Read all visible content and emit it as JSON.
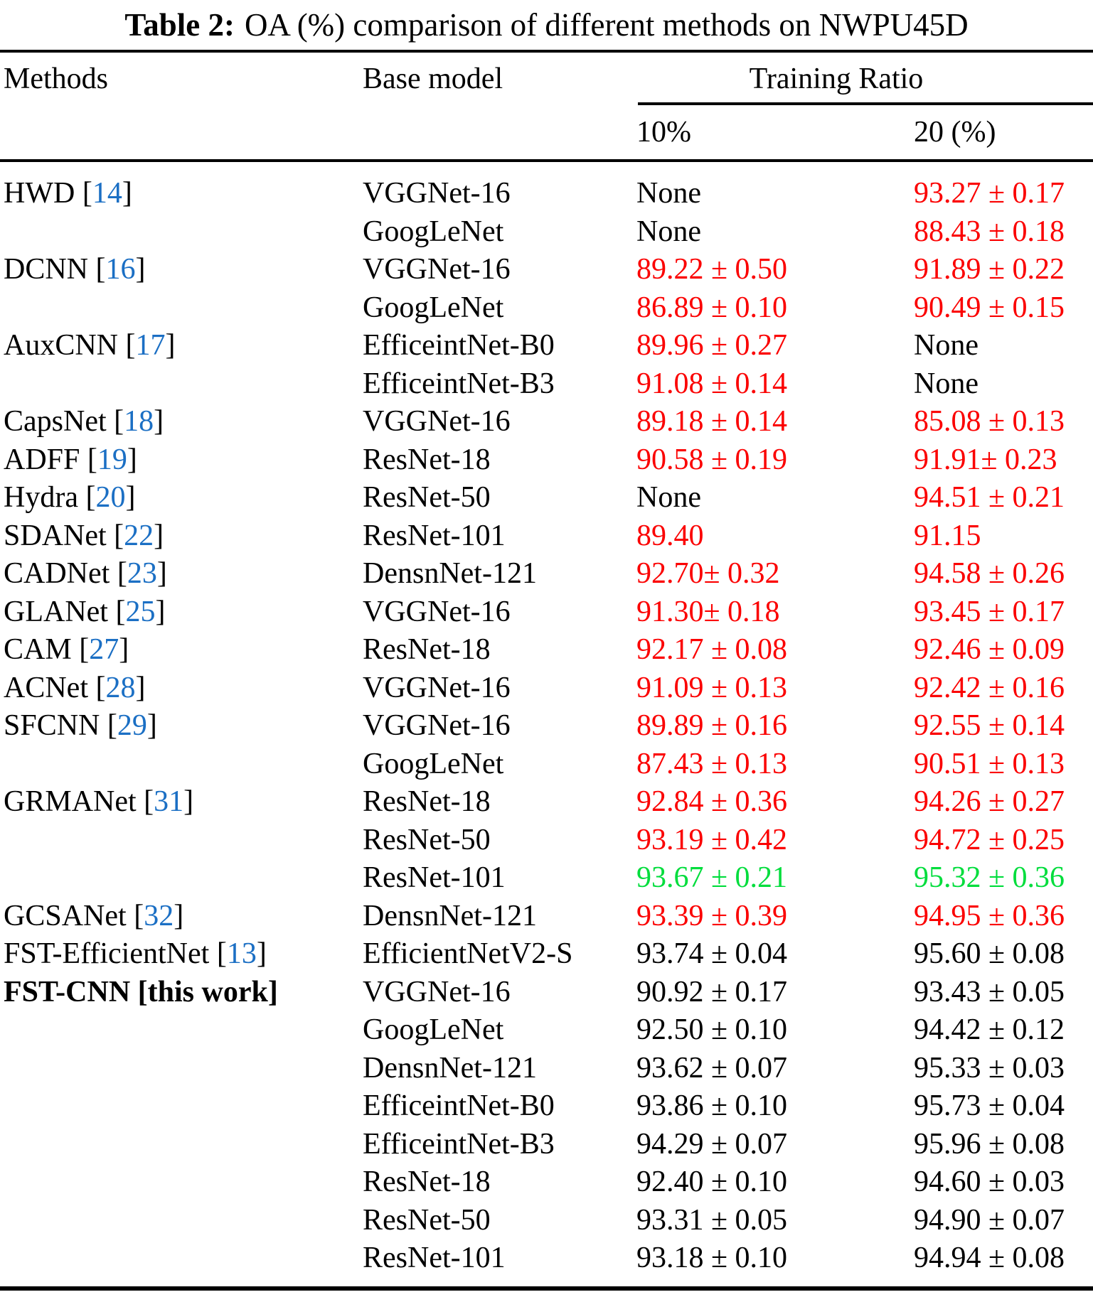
{
  "title": {
    "label": "Table 2:",
    "text": "OA (%) comparison of different methods on NWPU45D"
  },
  "columns": {
    "methods": "Methods",
    "base_model": "Base model",
    "training_ratio": "Training Ratio",
    "ratio_10": "10%",
    "ratio_20": "20 (%)"
  },
  "colors": {
    "red": "#fb0000",
    "green": "#00dd3c",
    "black": "#000000",
    "citation": "#1b6fc4"
  },
  "rows": [
    {
      "method": "HWD",
      "cite": "14",
      "bold": false,
      "base": "VGGNet-16",
      "v10": "None",
      "c10": "black",
      "v20": "93.27 ± 0.17",
      "c20": "red"
    },
    {
      "method": "",
      "cite": "",
      "bold": false,
      "base": "GoogLeNet",
      "v10": "None",
      "c10": "black",
      "v20": "88.43 ± 0.18",
      "c20": "red"
    },
    {
      "method": "DCNN",
      "cite": "16",
      "bold": false,
      "base": "VGGNet-16",
      "v10": "89.22 ± 0.50",
      "c10": "red",
      "v20": "91.89 ± 0.22",
      "c20": "red"
    },
    {
      "method": "",
      "cite": "",
      "bold": false,
      "base": "GoogLeNet",
      "v10": "86.89 ± 0.10",
      "c10": "red",
      "v20": "90.49 ± 0.15",
      "c20": "red"
    },
    {
      "method": "AuxCNN",
      "cite": "17",
      "bold": false,
      "base": "EfficeintNet-B0",
      "v10": "89.96 ± 0.27",
      "c10": "red",
      "v20": "None",
      "c20": "black"
    },
    {
      "method": "",
      "cite": "",
      "bold": false,
      "base": "EfficeintNet-B3",
      "v10": "91.08 ± 0.14",
      "c10": "red",
      "v20": "None",
      "c20": "black"
    },
    {
      "method": "CapsNet",
      "cite": "18",
      "bold": false,
      "base": "VGGNet-16",
      "v10": "89.18 ± 0.14",
      "c10": "red",
      "v20": "85.08 ± 0.13",
      "c20": "red"
    },
    {
      "method": "ADFF",
      "cite": "19",
      "bold": false,
      "base": "ResNet-18",
      "v10": "90.58 ± 0.19",
      "c10": "red",
      "v20": "91.91± 0.23",
      "c20": "red"
    },
    {
      "method": "Hydra",
      "cite": "20",
      "bold": false,
      "base": "ResNet-50",
      "v10": "None",
      "c10": "black",
      "v20": "94.51 ± 0.21",
      "c20": "red"
    },
    {
      "method": "SDANet",
      "cite": "22",
      "bold": false,
      "base": "ResNet-101",
      "v10": "89.40",
      "c10": "red",
      "v20": "91.15",
      "c20": "red"
    },
    {
      "method": "CADNet",
      "cite": "23",
      "bold": false,
      "base": "DensnNet-121",
      "v10": "92.70± 0.32",
      "c10": "red",
      "v20": "94.58 ± 0.26",
      "c20": "red"
    },
    {
      "method": "GLANet",
      "cite": "25",
      "bold": false,
      "base": "VGGNet-16",
      "v10": "91.30± 0.18",
      "c10": "red",
      "v20": "93.45 ± 0.17",
      "c20": "red"
    },
    {
      "method": "CAM",
      "cite": "27",
      "bold": false,
      "base": "ResNet-18",
      "v10": "92.17 ± 0.08",
      "c10": "red",
      "v20": "92.46 ± 0.09",
      "c20": "red"
    },
    {
      "method": "ACNet",
      "cite": "28",
      "bold": false,
      "base": "VGGNet-16",
      "v10": "91.09 ± 0.13",
      "c10": "red",
      "v20": "92.42 ± 0.16",
      "c20": "red"
    },
    {
      "method": "SFCNN",
      "cite": "29",
      "bold": false,
      "base": "VGGNet-16",
      "v10": "89.89 ± 0.16",
      "c10": "red",
      "v20": "92.55 ± 0.14",
      "c20": "red"
    },
    {
      "method": "",
      "cite": "",
      "bold": false,
      "base": "GoogLeNet",
      "v10": "87.43 ± 0.13",
      "c10": "red",
      "v20": "90.51 ± 0.13",
      "c20": "red"
    },
    {
      "method": "GRMANet",
      "cite": "31",
      "bold": false,
      "base": "ResNet-18",
      "v10": "92.84 ± 0.36",
      "c10": "red",
      "v20": "94.26 ± 0.27",
      "c20": "red"
    },
    {
      "method": "",
      "cite": "",
      "bold": false,
      "base": "ResNet-50",
      "v10": "93.19 ± 0.42",
      "c10": "red",
      "v20": "94.72 ± 0.25",
      "c20": "red"
    },
    {
      "method": "",
      "cite": "",
      "bold": false,
      "base": "ResNet-101",
      "v10": "93.67 ± 0.21",
      "c10": "green",
      "v20": "95.32 ± 0.36",
      "c20": "green"
    },
    {
      "method": "GCSANet",
      "cite": "32",
      "bold": false,
      "base": "DensnNet-121",
      "v10": "93.39 ± 0.39",
      "c10": "red",
      "v20": "94.95 ± 0.36",
      "c20": "red"
    },
    {
      "method": "FST-EfficientNet",
      "cite": "13",
      "bold": false,
      "base": "EfficientNetV2-S",
      "v10": "93.74 ± 0.04",
      "c10": "black",
      "v20": "95.60 ± 0.08",
      "c20": "black"
    },
    {
      "method": "FST-CNN [this work]",
      "cite": "",
      "bold": true,
      "base": "VGGNet-16",
      "v10": "90.92 ± 0.17",
      "c10": "black",
      "v20": "93.43 ± 0.05",
      "c20": "black"
    },
    {
      "method": "",
      "cite": "",
      "bold": false,
      "base": "GoogLeNet",
      "v10": "92.50 ± 0.10",
      "c10": "black",
      "v20": "94.42 ± 0.12",
      "c20": "black"
    },
    {
      "method": "",
      "cite": "",
      "bold": false,
      "base": "DensnNet-121",
      "v10": "93.62 ± 0.07",
      "c10": "black",
      "v20": "95.33 ± 0.03",
      "c20": "black"
    },
    {
      "method": "",
      "cite": "",
      "bold": false,
      "base": "EfficeintNet-B0",
      "v10": "93.86 ± 0.10",
      "c10": "black",
      "v20": "95.73 ± 0.04",
      "c20": "black"
    },
    {
      "method": "",
      "cite": "",
      "bold": false,
      "base": "EfficeintNet-B3",
      "v10": "94.29 ± 0.07",
      "c10": "black",
      "v20": "95.96 ± 0.08",
      "c20": "black"
    },
    {
      "method": "",
      "cite": "",
      "bold": false,
      "base": "ResNet-18",
      "v10": "92.40 ± 0.10",
      "c10": "black",
      "v20": "94.60 ± 0.03",
      "c20": "black"
    },
    {
      "method": "",
      "cite": "",
      "bold": false,
      "base": "ResNet-50",
      "v10": "93.31 ± 0.05",
      "c10": "black",
      "v20": "94.90 ± 0.07",
      "c20": "black"
    },
    {
      "method": "",
      "cite": "",
      "bold": false,
      "base": "ResNet-101",
      "v10": "93.18 ± 0.10",
      "c10": "black",
      "v20": "94.94 ± 0.08",
      "c20": "black"
    }
  ]
}
